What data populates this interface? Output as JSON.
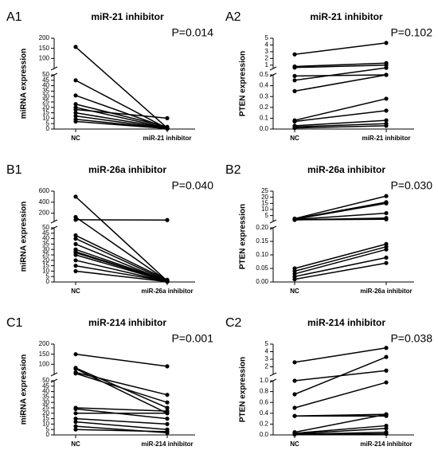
{
  "chart_data": [
    {
      "type": "line",
      "panel": "A1",
      "title": "miR-21 inhibitor",
      "annotation": "P=0.014",
      "ylabel": "miRNA expression",
      "categories": [
        "NC",
        "miR-21 inhibitor"
      ],
      "color": "#000000",
      "segments": [
        {
          "ylim": [
            0,
            50
          ],
          "yticks": [
            0,
            5,
            10,
            15,
            20,
            25,
            30,
            35,
            40,
            45,
            50
          ]
        },
        {
          "ylim": [
            50,
            200
          ],
          "yticks": [
            100,
            150,
            200
          ]
        }
      ],
      "series": [
        {
          "values": [
            157,
            1
          ]
        },
        {
          "values": [
            45,
            0.5
          ]
        },
        {
          "values": [
            31,
            1
          ]
        },
        {
          "values": [
            23,
            2
          ]
        },
        {
          "values": [
            20,
            1
          ]
        },
        {
          "values": [
            18,
            10
          ]
        },
        {
          "values": [
            15,
            1
          ]
        },
        {
          "values": [
            12,
            0.5
          ]
        },
        {
          "values": [
            9,
            0.3
          ]
        },
        {
          "values": [
            7,
            0.5
          ]
        }
      ]
    },
    {
      "type": "line",
      "panel": "A2",
      "title": "miR-21 inhibitor",
      "annotation": "P=0.102",
      "ylabel": "PTEN expression",
      "categories": [
        "NC",
        "miR-21 inhibitor"
      ],
      "color": "#000000",
      "segments": [
        {
          "ylim": [
            0,
            0.5
          ],
          "yticks": [
            {
              "value": 0,
              "label": "0.0"
            },
            0.1,
            0.2,
            0.3,
            0.4,
            0.5
          ]
        },
        {
          "ylim": [
            0.5,
            5
          ],
          "yticks": [
            1,
            2,
            3,
            4,
            5
          ]
        }
      ],
      "series": [
        {
          "values": [
            2.6,
            4.3
          ]
        },
        {
          "values": [
            0.8,
            1.3
          ]
        },
        {
          "values": [
            0.65,
            1.0
          ]
        },
        {
          "values": [
            0.49,
            0.5
          ]
        },
        {
          "values": [
            0.45,
            0.6
          ]
        },
        {
          "values": [
            0.35,
            0.5
          ]
        },
        {
          "values": [
            0.08,
            0.28
          ]
        },
        {
          "values": [
            0.07,
            0.17
          ]
        },
        {
          "values": [
            0.03,
            0.08
          ]
        },
        {
          "values": [
            0.02,
            0.05
          ]
        },
        {
          "values": [
            0.01,
            0.03
          ]
        }
      ]
    },
    {
      "type": "line",
      "panel": "B1",
      "title": "miR-26a inhibitor",
      "annotation": "P=0.040",
      "ylabel": "miRNA expression",
      "categories": [
        "NC",
        "miR-26a inhibitor"
      ],
      "color": "#000000",
      "segments": [
        {
          "ylim": [
            0,
            50
          ],
          "yticks": [
            0,
            5,
            10,
            15,
            20,
            25,
            30,
            35,
            40,
            45,
            50
          ]
        },
        {
          "ylim": [
            50,
            600
          ],
          "yticks": [
            200,
            400,
            600
          ]
        }
      ],
      "series": [
        {
          "values": [
            500,
            1
          ]
        },
        {
          "values": [
            130,
            1
          ]
        },
        {
          "values": [
            80,
            75
          ]
        },
        {
          "values": [
            43,
            2
          ]
        },
        {
          "values": [
            40,
            1
          ]
        },
        {
          "values": [
            35,
            0.5
          ]
        },
        {
          "values": [
            30,
            1
          ]
        },
        {
          "values": [
            28,
            0.5
          ]
        },
        {
          "values": [
            27,
            1
          ]
        },
        {
          "values": [
            25,
            0.5
          ]
        },
        {
          "values": [
            20,
            0.3
          ]
        },
        {
          "values": [
            15,
            0.5
          ]
        },
        {
          "values": [
            10,
            0.3
          ]
        }
      ]
    },
    {
      "type": "line",
      "panel": "B2",
      "title": "miR-26a inhibitor",
      "annotation": "P=0.030",
      "ylabel": "PTEN expression",
      "categories": [
        "NC",
        "miR-26a inhibitor"
      ],
      "color": "#000000",
      "segments": [
        {
          "ylim": [
            0,
            0.2
          ],
          "yticks": [
            {
              "value": 0,
              "label": "0.00"
            },
            0.05,
            {
              "value": 0.1,
              "label": "0.10"
            },
            0.15,
            {
              "value": 0.2,
              "label": "0.20"
            }
          ]
        },
        {
          "ylim": [
            0.2,
            25
          ],
          "yticks": [
            5,
            10,
            15,
            20,
            25
          ]
        }
      ],
      "series": [
        {
          "values": [
            2.5,
            21
          ]
        },
        {
          "values": [
            2.3,
            16
          ]
        },
        {
          "values": [
            2,
            15
          ]
        },
        {
          "values": [
            1.8,
            7
          ]
        },
        {
          "values": [
            1.5,
            3
          ]
        },
        {
          "values": [
            1.5,
            2
          ]
        },
        {
          "values": [
            0.05,
            0.14
          ]
        },
        {
          "values": [
            0.04,
            0.13
          ]
        },
        {
          "values": [
            0.03,
            0.12
          ]
        },
        {
          "values": [
            0.02,
            0.09
          ]
        },
        {
          "values": [
            0.01,
            0.07
          ]
        }
      ]
    },
    {
      "type": "line",
      "panel": "C1",
      "title": "miR-214 inhibitor",
      "annotation": "P=0.001",
      "ylabel": "miRNA expression",
      "categories": [
        "NC",
        "miR-214 inhibitor"
      ],
      "color": "#000000",
      "segments": [
        {
          "ylim": [
            0,
            50
          ],
          "yticks": [
            0,
            5,
            10,
            15,
            20,
            25,
            30,
            35,
            40,
            45,
            50
          ]
        },
        {
          "ylim": [
            50,
            200
          ],
          "yticks": [
            100,
            150,
            200
          ]
        }
      ],
      "series": [
        {
          "values": [
            150,
            90
          ]
        },
        {
          "values": [
            82,
            25
          ]
        },
        {
          "values": [
            78,
            20
          ]
        },
        {
          "values": [
            60,
            37
          ]
        },
        {
          "values": [
            55,
            30
          ]
        },
        {
          "values": [
            25,
            22
          ]
        },
        {
          "values": [
            24,
            15
          ]
        },
        {
          "values": [
            20,
            20
          ]
        },
        {
          "values": [
            15,
            10
          ]
        },
        {
          "values": [
            12,
            5
          ]
        },
        {
          "values": [
            8,
            2
          ]
        },
        {
          "values": [
            5,
            3
          ]
        }
      ]
    },
    {
      "type": "line",
      "panel": "C2",
      "title": "miR-214 inhibitor",
      "annotation": "P=0.038",
      "ylabel": "PTEN expression",
      "categories": [
        "NC",
        "miR-214 inhibitor"
      ],
      "color": "#000000",
      "segments": [
        {
          "ylim": [
            0,
            1
          ],
          "yticks": [
            {
              "value": 0,
              "label": "0.0"
            },
            0.2,
            0.4,
            0.6,
            0.8,
            {
              "value": 1,
              "label": "1.0"
            }
          ]
        },
        {
          "ylim": [
            1,
            5
          ],
          "yticks": [
            2,
            3,
            4,
            5
          ]
        }
      ],
      "series": [
        {
          "values": [
            2.6,
            4.5
          ]
        },
        {
          "values": [
            1.0,
            1.5
          ]
        },
        {
          "values": [
            0.75,
            3.3
          ]
        },
        {
          "values": [
            0.5,
            0.97
          ]
        },
        {
          "values": [
            0.35,
            0.38
          ]
        },
        {
          "values": [
            0.35,
            0.35
          ]
        },
        {
          "values": [
            0.05,
            0.38
          ]
        },
        {
          "values": [
            0.03,
            0.17
          ]
        },
        {
          "values": [
            0.02,
            0.12
          ]
        },
        {
          "values": [
            0.01,
            0.05
          ]
        },
        {
          "values": [
            0.01,
            0.02
          ]
        }
      ]
    }
  ]
}
